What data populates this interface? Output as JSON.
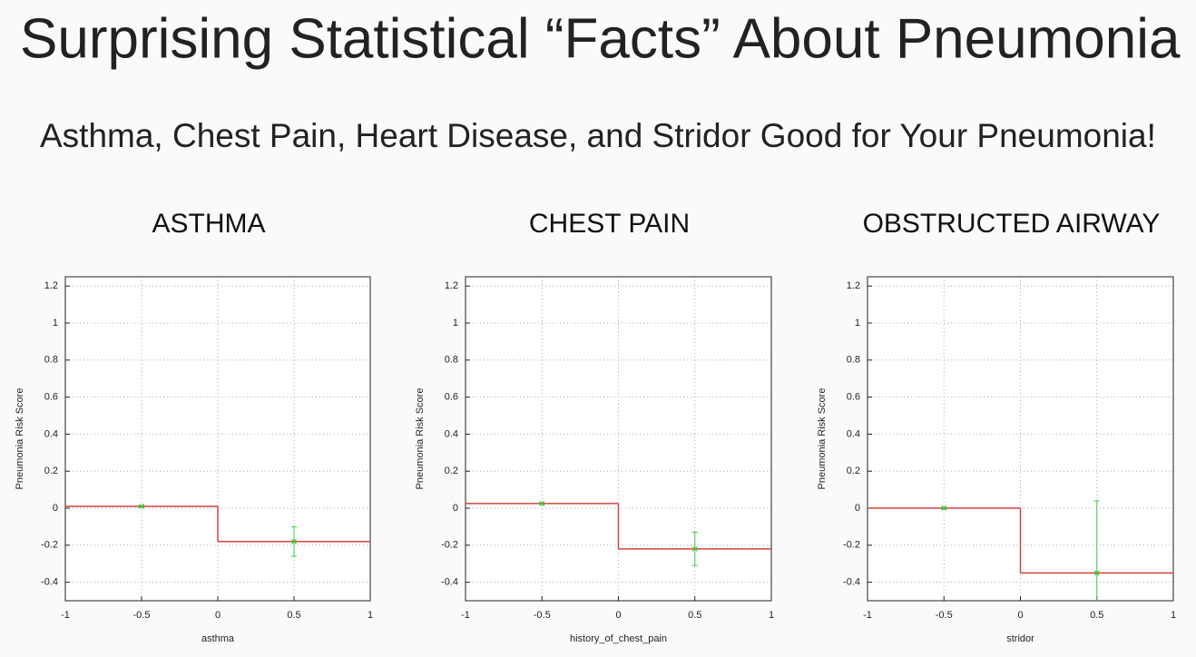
{
  "title": "Surprising Statistical “Facts” About Pneumonia",
  "subtitle": "Asthma, Chest Pain, Heart Disease, and Stridor Good for Your Pneumonia!",
  "chart_data": [
    {
      "type": "step",
      "title": "ASTHMA",
      "x_label": "asthma",
      "y_label": "Pneumonia Risk Score",
      "bins": [
        -1,
        0,
        1
      ],
      "x": [
        -0.5,
        0.5
      ],
      "values": [
        0.01,
        -0.18
      ],
      "errors": [
        0.005,
        0.08
      ],
      "color": "#d0443c",
      "point_color": "#3ccf3c",
      "xlim": [
        -1,
        1
      ],
      "xticks": [
        -1,
        -0.5,
        0,
        0.5,
        1
      ],
      "ylim": [
        -0.5,
        1.25
      ],
      "yticks": [
        -0.4,
        -0.2,
        0,
        0.2,
        0.4,
        0.6,
        0.8,
        1,
        1.2
      ],
      "grid": true
    },
    {
      "type": "step",
      "title": "CHEST PAIN",
      "x_label": "history_of_chest_pain",
      "y_label": "Pneumonia Risk Score",
      "bins": [
        -1,
        0,
        1
      ],
      "x": [
        -0.5,
        0.5
      ],
      "values": [
        0.025,
        -0.22
      ],
      "errors": [
        0.005,
        0.09
      ],
      "color": "#d0443c",
      "point_color": "#3ccf3c",
      "xlim": [
        -1,
        1
      ],
      "xticks": [
        -1,
        -0.5,
        0,
        0.5,
        1
      ],
      "ylim": [
        -0.5,
        1.25
      ],
      "yticks": [
        -0.4,
        -0.2,
        0,
        0.2,
        0.4,
        0.6,
        0.8,
        1,
        1.2
      ],
      "grid": true
    },
    {
      "type": "step",
      "title": "OBSTRUCTED AIRWAY",
      "x_label": "stridor",
      "y_label": "Pneumonia Risk Score",
      "bins": [
        -1,
        0,
        1
      ],
      "x": [
        -0.5,
        0.5
      ],
      "values": [
        0.0,
        -0.35
      ],
      "errors": [
        0.005,
        0.39
      ],
      "color": "#d0443c",
      "point_color": "#3ccf3c",
      "xlim": [
        -1,
        1
      ],
      "xticks": [
        -1,
        -0.5,
        0,
        0.5,
        1
      ],
      "ylim": [
        -0.5,
        1.25
      ],
      "yticks": [
        -0.4,
        -0.2,
        0,
        0.2,
        0.4,
        0.6,
        0.8,
        1,
        1.2
      ],
      "grid": true
    }
  ]
}
